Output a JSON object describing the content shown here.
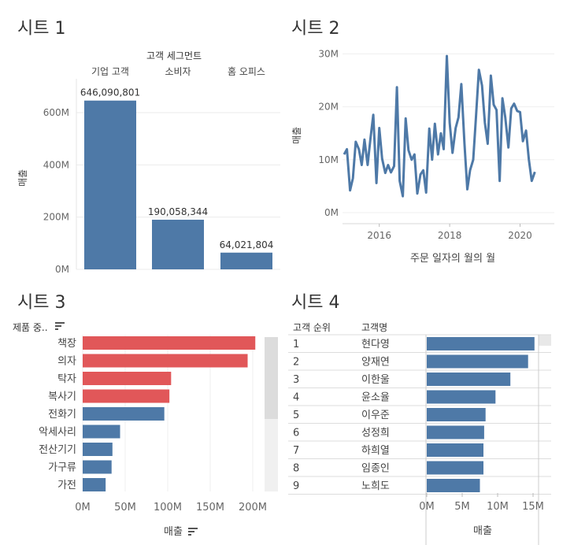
{
  "sheets": [
    {
      "title": "시트 1"
    },
    {
      "title": "시트 2"
    },
    {
      "title": "시트 3"
    },
    {
      "title": "시트 4"
    }
  ],
  "chart_data": [
    {
      "type": "bar",
      "header": "고객 세그먼트",
      "categories": [
        "기업 고객",
        "소비자",
        "홈 오피스"
      ],
      "values": [
        646090801,
        190058344,
        64021804
      ],
      "value_labels": [
        "646,090,801",
        "190,058,344",
        "64,021,804"
      ],
      "ylabel": "매출",
      "yticks": [
        "0M",
        "200M",
        "400M",
        "600M"
      ],
      "ytick_values": [
        0,
        200000000,
        400000000,
        600000000
      ],
      "ylim": [
        0,
        700000000
      ],
      "color": "#4e79a7",
      "grid": true
    },
    {
      "type": "line",
      "xlabel": "주문 일자의 월의 월",
      "ylabel": "매출",
      "xticks": [
        "2016",
        "2018",
        "2020"
      ],
      "xtick_values": [
        2016,
        2018,
        2020
      ],
      "yticks": [
        "0M",
        "10M",
        "20M",
        "30M"
      ],
      "ytick_values": [
        0,
        10,
        20,
        30
      ],
      "ylim": [
        0,
        31
      ],
      "xlim": [
        2014.8,
        2020.6
      ],
      "color": "#4e79a7",
      "series": [
        {
          "values": [
            [
              2015.0,
              11.0
            ],
            [
              2015.08,
              12.0
            ],
            [
              2015.17,
              4.2
            ],
            [
              2015.25,
              6.5
            ],
            [
              2015.33,
              13.4
            ],
            [
              2015.42,
              12.0
            ],
            [
              2015.5,
              9.0
            ],
            [
              2015.58,
              13.8
            ],
            [
              2015.67,
              9.0
            ],
            [
              2015.75,
              14.0
            ],
            [
              2015.83,
              18.5
            ],
            [
              2015.92,
              5.6
            ],
            [
              2016.0,
              16.0
            ],
            [
              2016.08,
              10.2
            ],
            [
              2016.17,
              7.5
            ],
            [
              2016.25,
              9.0
            ],
            [
              2016.33,
              7.6
            ],
            [
              2016.42,
              8.8
            ],
            [
              2016.5,
              23.7
            ],
            [
              2016.58,
              6.0
            ],
            [
              2016.67,
              3.1
            ],
            [
              2016.75,
              17.8
            ],
            [
              2016.83,
              11.8
            ],
            [
              2016.92,
              10.0
            ],
            [
              2017.0,
              11.0
            ],
            [
              2017.08,
              3.6
            ],
            [
              2017.17,
              7.2
            ],
            [
              2017.25,
              8.0
            ],
            [
              2017.33,
              3.8
            ],
            [
              2017.42,
              15.9
            ],
            [
              2017.5,
              10.0
            ],
            [
              2017.58,
              16.8
            ],
            [
              2017.67,
              11.0
            ],
            [
              2017.75,
              15.0
            ],
            [
              2017.83,
              12.0
            ],
            [
              2017.92,
              29.6
            ],
            [
              2018.0,
              17.0
            ],
            [
              2018.08,
              11.3
            ],
            [
              2018.17,
              16.0
            ],
            [
              2018.25,
              18.0
            ],
            [
              2018.33,
              24.3
            ],
            [
              2018.42,
              13.0
            ],
            [
              2018.5,
              4.4
            ],
            [
              2018.58,
              8.0
            ],
            [
              2018.67,
              10.0
            ],
            [
              2018.75,
              18.3
            ],
            [
              2018.83,
              27.0
            ],
            [
              2018.92,
              24.0
            ],
            [
              2019.0,
              17.0
            ],
            [
              2019.08,
              13.0
            ],
            [
              2019.17,
              25.9
            ],
            [
              2019.25,
              20.4
            ],
            [
              2019.33,
              19.4
            ],
            [
              2019.42,
              6.0
            ],
            [
              2019.5,
              21.6
            ],
            [
              2019.58,
              18.0
            ],
            [
              2019.67,
              12.3
            ],
            [
              2019.75,
              19.7
            ],
            [
              2019.83,
              20.6
            ],
            [
              2019.92,
              19.2
            ],
            [
              2020.0,
              19.0
            ],
            [
              2020.08,
              13.5
            ],
            [
              2020.17,
              15.5
            ],
            [
              2020.25,
              10.0
            ],
            [
              2020.33,
              6.0
            ],
            [
              2020.42,
              7.7
            ]
          ]
        }
      ]
    },
    {
      "type": "bar",
      "orientation": "horizontal",
      "header": "제품 중..",
      "xlabel": "매출",
      "categories": [
        "책장",
        "의자",
        "탁자",
        "복사기",
        "전화기",
        "악세사리",
        "전산기기",
        "가구류",
        "가전"
      ],
      "values": [
        203,
        194,
        104,
        102,
        96,
        44,
        35,
        34,
        27
      ],
      "highlighted": [
        true,
        true,
        true,
        true,
        false,
        false,
        false,
        false,
        false
      ],
      "xticks": [
        "0M",
        "50M",
        "100M",
        "150M",
        "200M"
      ],
      "xtick_values": [
        0,
        50,
        100,
        150,
        200
      ],
      "colors": {
        "highlight": "#e15759",
        "normal": "#4e79a7"
      }
    },
    {
      "type": "table",
      "columns": [
        "고객 순위",
        "고객명"
      ],
      "xlabel": "매출",
      "xticks": [
        "0M",
        "5M",
        "10M",
        "15M"
      ],
      "xtick_values": [
        0,
        5,
        10,
        15
      ],
      "rows": [
        {
          "rank": "1",
          "name": "현다영",
          "value": 15.2
        },
        {
          "rank": "2",
          "name": "양재연",
          "value": 14.3
        },
        {
          "rank": "3",
          "name": "이한울",
          "value": 11.8
        },
        {
          "rank": "4",
          "name": "윤소율",
          "value": 9.7
        },
        {
          "rank": "5",
          "name": "이우준",
          "value": 8.3
        },
        {
          "rank": "6",
          "name": "성정희",
          "value": 8.1
        },
        {
          "rank": "7",
          "name": "하희열",
          "value": 8.0
        },
        {
          "rank": "8",
          "name": "임종인",
          "value": 8.0
        },
        {
          "rank": "9",
          "name": "노희도",
          "value": 7.5
        }
      ],
      "color": "#4e79a7"
    }
  ]
}
